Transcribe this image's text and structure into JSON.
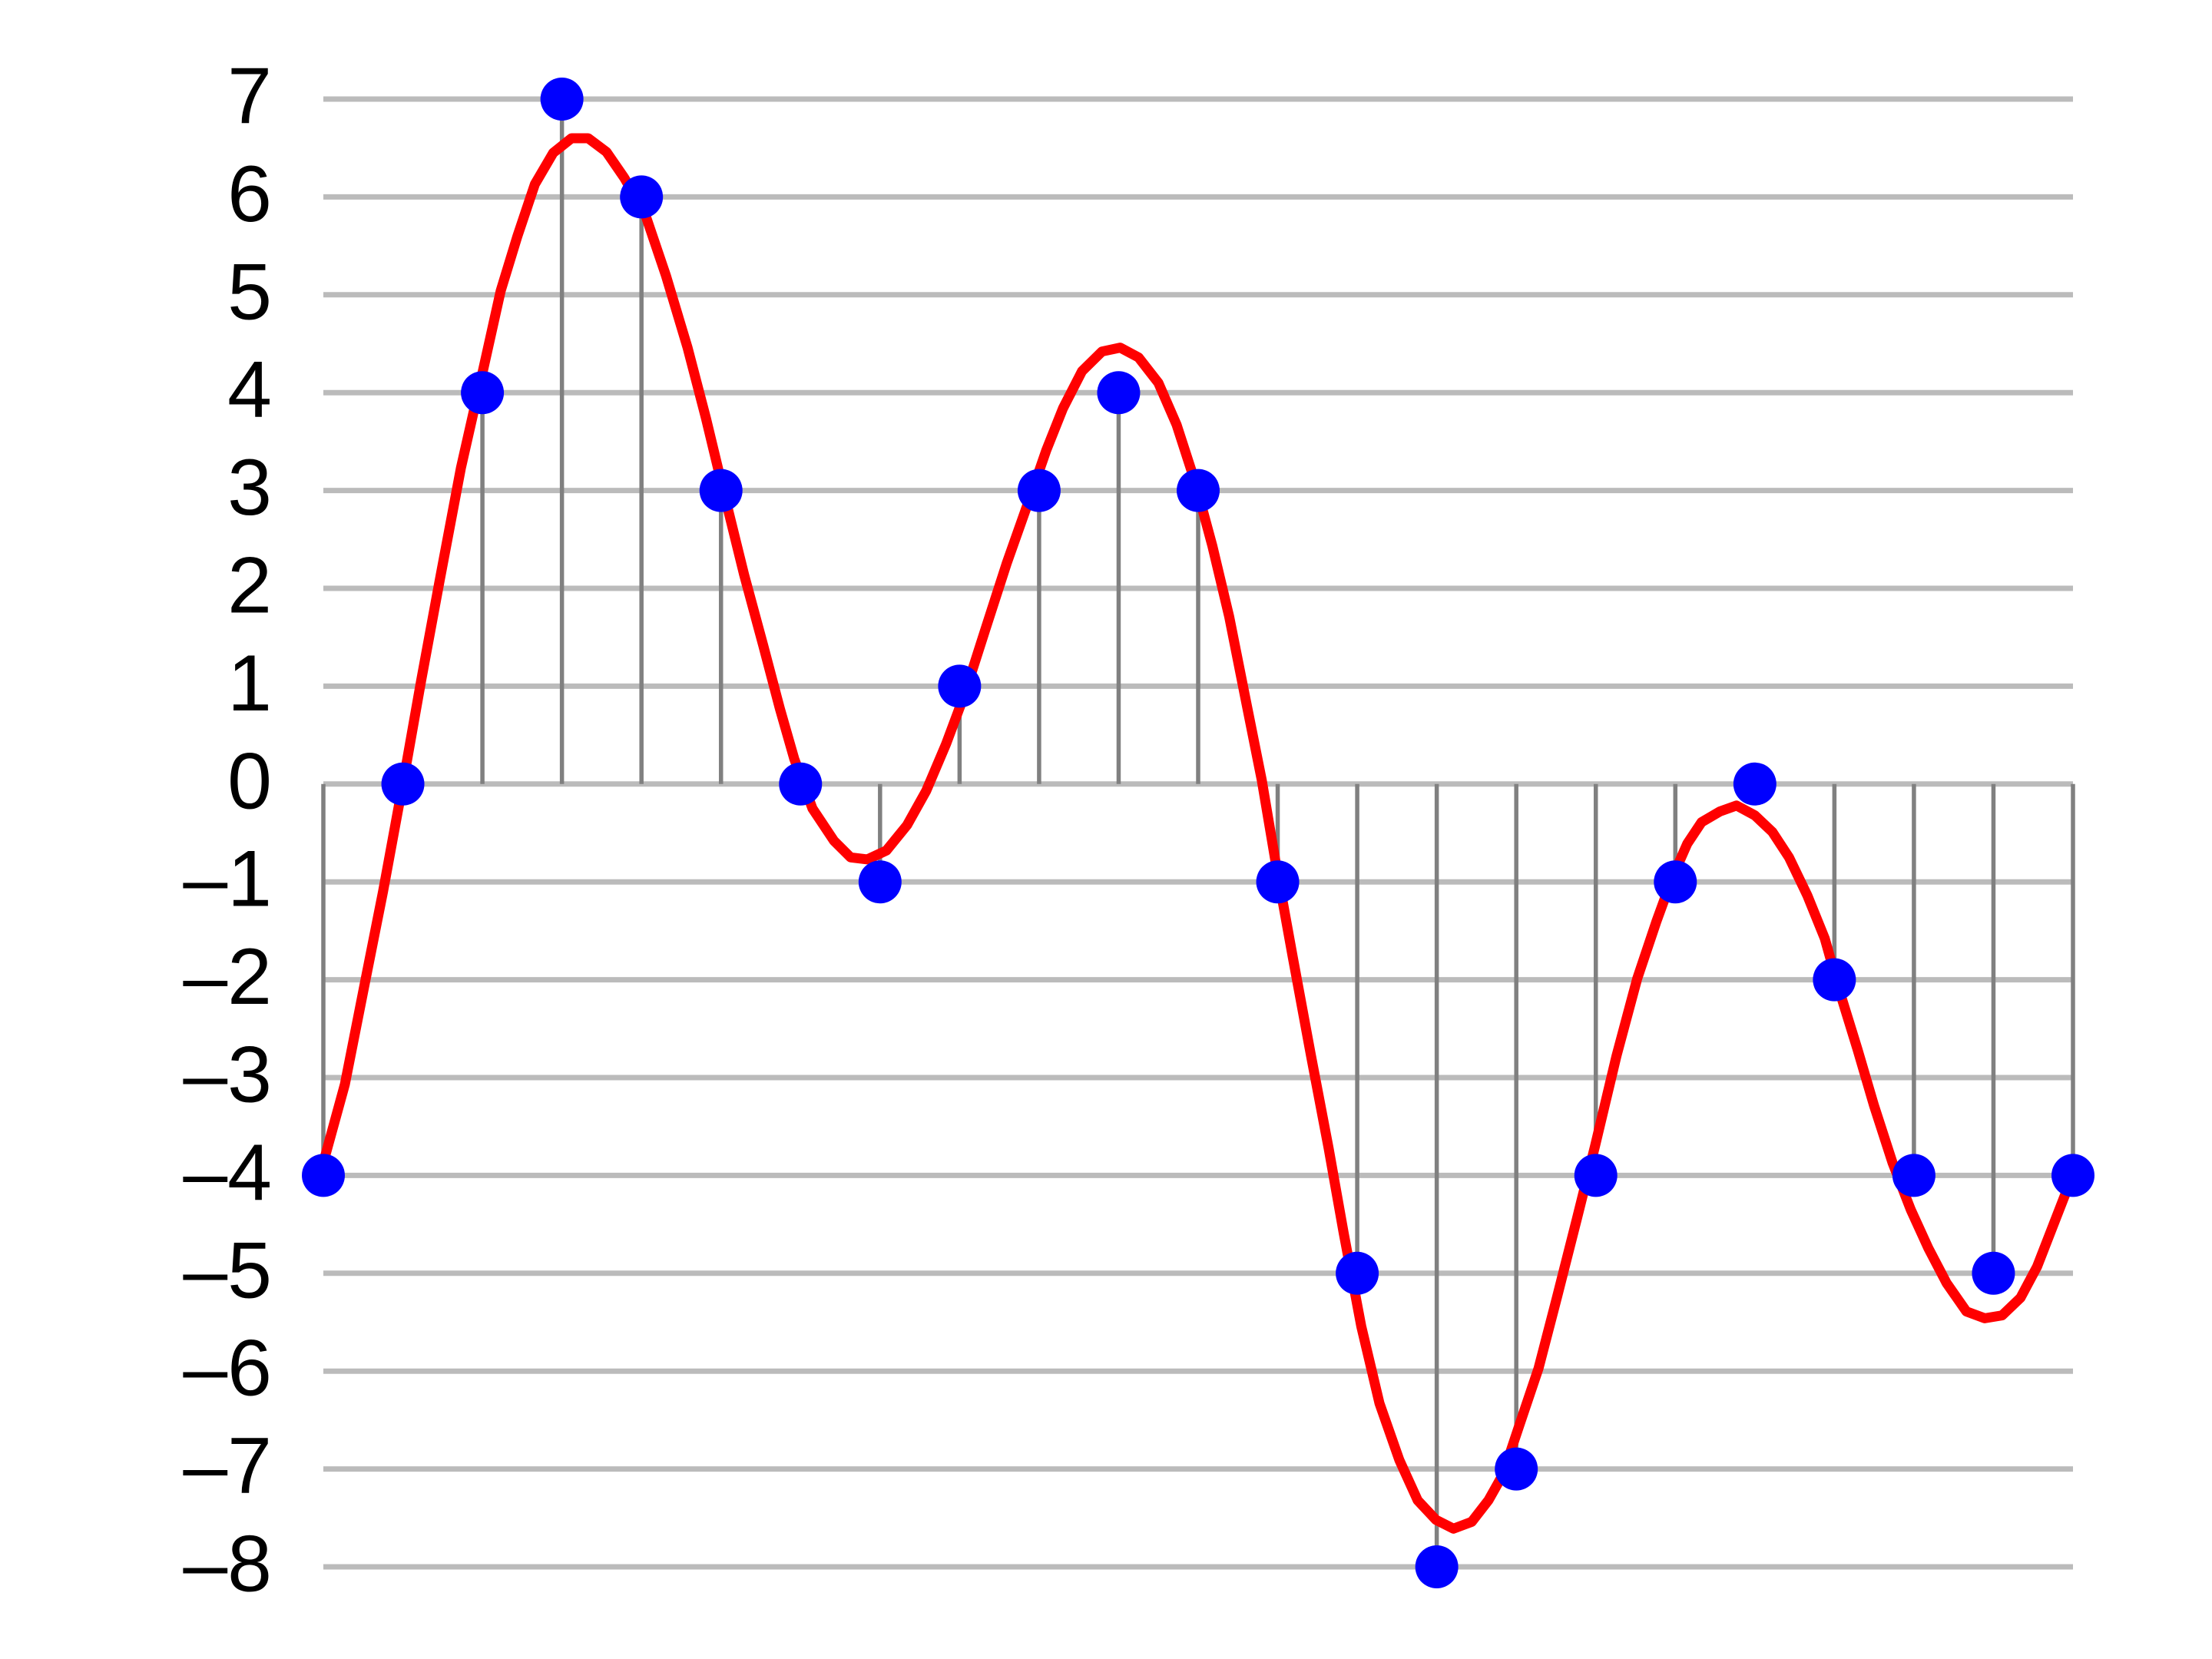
{
  "chart_data": {
    "type": "stem",
    "samples": {
      "x": [
        0,
        1,
        2,
        3,
        4,
        5,
        6,
        7,
        8,
        9,
        10,
        11,
        12,
        13,
        14,
        15,
        16,
        17,
        18,
        19,
        20,
        21,
        22
      ],
      "values": [
        -4,
        0,
        4,
        7,
        6,
        3,
        0,
        -1,
        1,
        3,
        4,
        3,
        -1,
        -5,
        -8,
        -7,
        -4,
        -1,
        0,
        -2,
        -4,
        -5,
        -4
      ],
      "color": "#0000ff",
      "stem_color": "#808080"
    },
    "curve": {
      "x": [
        0,
        0.27,
        0.53,
        0.75,
        1.0,
        1.23,
        1.46,
        1.73,
        2.0,
        2.23,
        2.44,
        2.66,
        2.89,
        3.12,
        3.33,
        3.56,
        3.78,
        4.04,
        4.31,
        4.58,
        4.81,
        5.03,
        5.29,
        5.53,
        5.74,
        5.92,
        6.15,
        6.42,
        6.63,
        6.84,
        7.08,
        7.34,
        7.58,
        7.83,
        8.06,
        8.32,
        8.59,
        8.86,
        9.09,
        9.3,
        9.54,
        9.79,
        10.02,
        10.25,
        10.5,
        10.73,
        10.96,
        11.18,
        11.39,
        11.62,
        11.8,
        11.98,
        12.19,
        12.42,
        12.64,
        12.83,
        13.05,
        13.28,
        13.53,
        13.76,
        13.99,
        14.21,
        14.44,
        14.65,
        14.83,
        15.04,
        15.28,
        15.51,
        15.76,
        15.99,
        16.26,
        16.52,
        16.76,
        16.97,
        17.15,
        17.33,
        17.56,
        17.77,
        18.0,
        18.22,
        18.43,
        18.66,
        18.88,
        19.07,
        19.29,
        19.5,
        19.73,
        19.96,
        20.18,
        20.41,
        20.66,
        20.89,
        21.11,
        21.34,
        21.55,
        21.78,
        22.0
      ],
      "values": [
        -3.87,
        -3.07,
        -2,
        -1.1,
        0,
        1.06,
        2.07,
        3.23,
        4.2,
        5.04,
        5.6,
        6.13,
        6.45,
        6.6,
        6.6,
        6.46,
        6.2,
        5.84,
        5.19,
        4.46,
        3.74,
        3.0,
        2.14,
        1.42,
        0.77,
        0.26,
        -0.25,
        -0.58,
        -0.75,
        -0.77,
        -0.68,
        -0.42,
        -0.07,
        0.41,
        0.91,
        1.57,
        2.25,
        2.87,
        3.41,
        3.84,
        4.22,
        4.42,
        4.46,
        4.36,
        4.1,
        3.67,
        3.09,
        2.43,
        1.71,
        0.77,
        0.04,
        -0.83,
        -1.77,
        -2.78,
        -3.72,
        -4.59,
        -5.54,
        -6.33,
        -6.91,
        -7.32,
        -7.52,
        -7.61,
        -7.54,
        -7.32,
        -7.06,
        -6.55,
        -5.97,
        -5.25,
        -4.45,
        -3.7,
        -2.78,
        -1.99,
        -1.41,
        -0.94,
        -0.61,
        -0.39,
        -0.28,
        -0.22,
        -0.32,
        -0.49,
        -0.75,
        -1.14,
        -1.58,
        -2.13,
        -2.71,
        -3.29,
        -3.87,
        -4.35,
        -4.74,
        -5.1,
        -5.39,
        -5.46,
        -5.43,
        -5.25,
        -4.93,
        -4.45,
        -3.99
      ],
      "color": "#ff0000"
    },
    "xlim": [
      0,
      22
    ],
    "ylim": [
      -8,
      7
    ],
    "yticks": [
      {
        "value": -8,
        "label": "–8"
      },
      {
        "value": -7,
        "label": "–7"
      },
      {
        "value": -6,
        "label": "–6"
      },
      {
        "value": -5,
        "label": "–5"
      },
      {
        "value": -4,
        "label": "–4"
      },
      {
        "value": -3,
        "label": "–3"
      },
      {
        "value": -2,
        "label": "–2"
      },
      {
        "value": -1,
        "label": "–1"
      },
      0,
      1,
      2,
      3,
      4,
      5,
      6,
      7
    ],
    "grid": true,
    "grid_color": "#bbbbbb"
  }
}
